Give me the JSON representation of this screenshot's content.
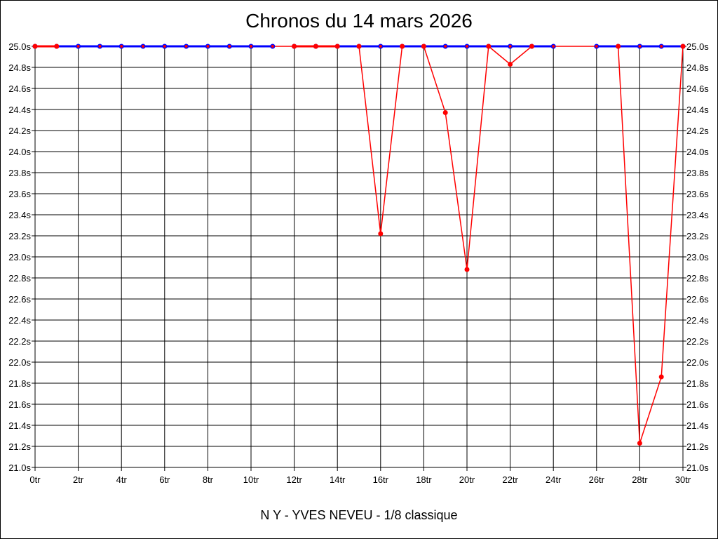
{
  "chart_data": {
    "type": "line",
    "title": "Chronos du 14 mars 2026",
    "subtitle": "N Y - YVES NEVEU - 1/8 classique",
    "xlabel": "",
    "ylabel": "",
    "x_unit": "tr",
    "y_unit": "s",
    "xlim": [
      0,
      30
    ],
    "ylim": [
      21.0,
      25.0
    ],
    "x_ticks": [
      0,
      2,
      4,
      6,
      8,
      10,
      12,
      14,
      16,
      18,
      20,
      22,
      24,
      26,
      28,
      30
    ],
    "y_ticks": [
      21.0,
      21.2,
      21.4,
      21.6,
      21.8,
      22.0,
      22.2,
      22.4,
      22.6,
      22.8,
      23.0,
      23.2,
      23.4,
      23.6,
      23.8,
      24.0,
      24.2,
      24.4,
      24.6,
      24.8,
      25.0
    ],
    "y_ticks_both_sides": true,
    "grid": true,
    "series": [
      {
        "color": "#ff0000",
        "marker_color": "#ff0000",
        "points": [
          [
            0,
            25.0
          ],
          [
            1,
            25.0
          ],
          [
            12,
            25.0
          ],
          [
            13,
            25.0
          ],
          [
            14,
            25.0
          ],
          [
            15,
            25.0
          ],
          [
            16,
            23.22
          ],
          [
            17,
            25.0
          ],
          [
            18,
            25.0
          ],
          [
            19,
            24.37
          ],
          [
            20,
            22.88
          ],
          [
            21,
            25.0
          ],
          [
            22,
            24.83
          ],
          [
            23,
            25.0
          ],
          [
            27,
            25.0
          ],
          [
            28,
            21.23
          ],
          [
            29,
            21.86
          ],
          [
            30,
            25.0
          ]
        ]
      },
      {
        "color": "#0000ff",
        "marker_color": "#0000ff",
        "segments": [
          [
            [
              1,
              25.0
            ],
            [
              2,
              25.0
            ],
            [
              3,
              25.0
            ],
            [
              4,
              25.0
            ],
            [
              5,
              25.0
            ],
            [
              6,
              25.0
            ],
            [
              7,
              25.0
            ],
            [
              8,
              25.0
            ],
            [
              9,
              25.0
            ],
            [
              10,
              25.0
            ],
            [
              11,
              25.0
            ]
          ],
          [
            [
              14,
              25.0
            ],
            [
              15,
              25.0
            ],
            [
              16,
              25.0
            ],
            [
              17,
              25.0
            ],
            [
              18,
              25.0
            ],
            [
              19,
              25.0
            ],
            [
              20,
              25.0
            ],
            [
              21,
              25.0
            ],
            [
              22,
              25.0
            ],
            [
              23,
              25.0
            ],
            [
              24,
              25.0
            ]
          ],
          [
            [
              26,
              25.0
            ],
            [
              27,
              25.0
            ],
            [
              28,
              25.0
            ],
            [
              29,
              25.0
            ],
            [
              30,
              25.0
            ]
          ]
        ],
        "markers": [
          [
            0,
            25.0
          ],
          [
            1,
            25.0
          ],
          [
            2,
            25.0
          ],
          [
            12,
            25.0
          ],
          [
            13,
            25.0
          ],
          [
            14,
            25.0
          ],
          [
            24,
            25.0
          ],
          [
            26,
            25.0
          ]
        ]
      }
    ]
  }
}
